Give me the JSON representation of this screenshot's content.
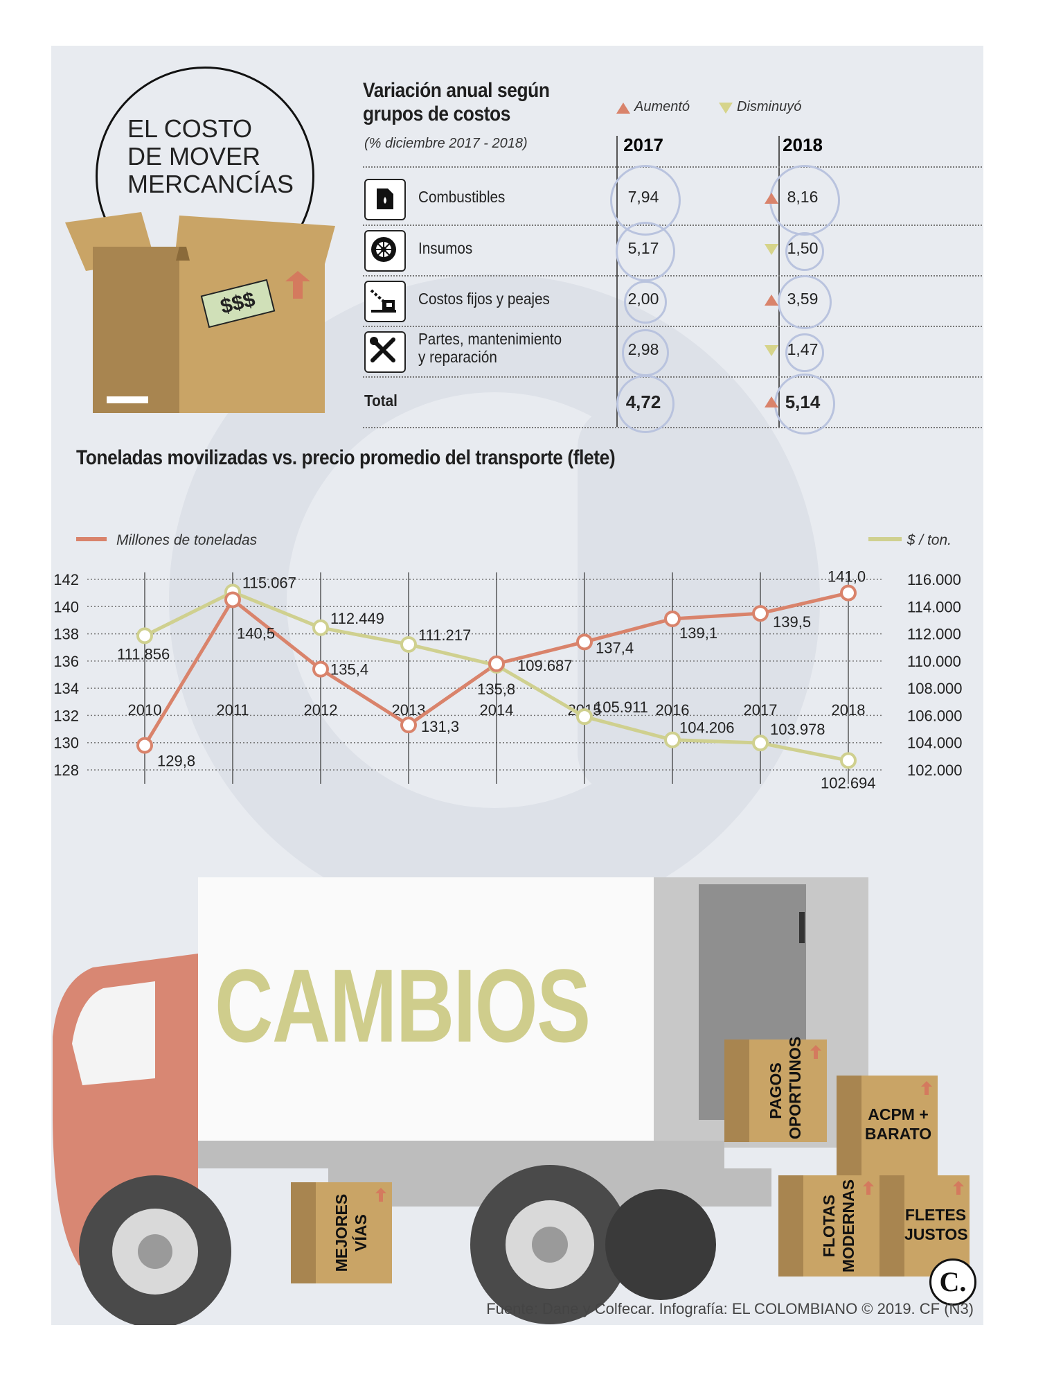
{
  "header": {
    "title_lines": [
      "EL COSTO",
      "DE MOVER",
      "MERCANCÍAS"
    ],
    "box_price": "$$$"
  },
  "table": {
    "title_lines": [
      "Variación anual según",
      "grupos de costos"
    ],
    "subtitle": "(% diciembre 2017 - 2018)",
    "legend": {
      "up": "Aumentó",
      "down": "Disminuyó"
    },
    "col_2017": "2017",
    "col_2018": "2018",
    "rows": [
      {
        "label": "Combustibles",
        "icon": "fuel-can-icon",
        "v2017": "7,94",
        "v2018": "8,16",
        "trend": "up",
        "r2017": 96,
        "r2018": 96
      },
      {
        "label": "Insumos",
        "icon": "tire-icon",
        "v2017": "5,17",
        "v2018": "1,50",
        "trend": "down",
        "r2017": 80,
        "r2018": 50
      },
      {
        "label": "Costos fijos y peajes",
        "icon": "toll-gate-icon",
        "v2017": "2,00",
        "v2018": "3,59",
        "trend": "up",
        "r2017": 56,
        "r2018": 72
      },
      {
        "label": "Partes, mantenimiento",
        "label2": "y reparación",
        "icon": "tools-icon",
        "v2017": "2,98",
        "v2018": "1,47",
        "trend": "down",
        "r2017": 62,
        "r2018": 50
      },
      {
        "label": "Total",
        "icon": "",
        "v2017": "4,72",
        "v2018": "5,14",
        "trend": "up",
        "bold": true,
        "r2017": 78,
        "r2018": 82
      }
    ],
    "colors": {
      "up": "#d9836b",
      "down": "#d6d48a"
    }
  },
  "chart": {
    "title": "Toneladas movilizadas vs. precio promedio del transporte (flete)"
  },
  "chart_data": {
    "type": "line",
    "title": "Toneladas movilizadas vs. precio promedio del transporte (flete)",
    "x": [
      "2010",
      "2011",
      "2012",
      "2013",
      "2014",
      "2015",
      "2016",
      "2017",
      "2018"
    ],
    "series": [
      {
        "name": "Millones de toneladas",
        "axis": "left",
        "color": "#d9836b",
        "values": [
          129.8,
          140.5,
          135.4,
          131.3,
          135.8,
          137.4,
          139.1,
          139.5,
          141.0
        ],
        "labels": [
          "129,8",
          "140,5",
          "135,4",
          "131,3",
          "135,8",
          "137,4",
          "139,1",
          "139,5",
          "141,0"
        ]
      },
      {
        "name": "$ / ton.",
        "axis": "right",
        "color": "#cfd08f",
        "values": [
          111856,
          115067,
          112449,
          111217,
          109687,
          105911,
          104206,
          103978,
          102694
        ],
        "labels": [
          "111.856",
          "115.067",
          "112.449",
          "111.217",
          "109.687",
          "105.911",
          "104.206",
          "103.978",
          "102.694"
        ]
      }
    ],
    "ylim_left": [
      128,
      142
    ],
    "yticks_left": [
      "142",
      "140",
      "138",
      "136",
      "134",
      "132",
      "130",
      "128"
    ],
    "ylim_right": [
      102000,
      116000
    ],
    "yticks_right": [
      "116.000",
      "114.000",
      "112.000",
      "110.000",
      "108.000",
      "106.000",
      "104.000",
      "102.000"
    ],
    "grid": true,
    "legend": "top"
  },
  "truck": {
    "banner": "CAMBIOS",
    "boxes": [
      {
        "lines": [
          "PAGOS",
          "OPORTUNOS"
        ],
        "vertical": true
      },
      {
        "lines": [
          "ACPM +",
          "BARATO"
        ],
        "vertical": false
      },
      {
        "lines": [
          "FLOTAS",
          "MODERNAS"
        ],
        "vertical": true
      },
      {
        "lines": [
          "FLETES",
          "JUSTOS"
        ],
        "vertical": false
      },
      {
        "lines": [
          "MEJORES",
          "VÍAS"
        ],
        "vertical": true
      }
    ]
  },
  "logo": "C.",
  "source": "Fuente: Dane y Colfecar. Infografía: EL COLOMBIANO © 2019. CF (N3)"
}
